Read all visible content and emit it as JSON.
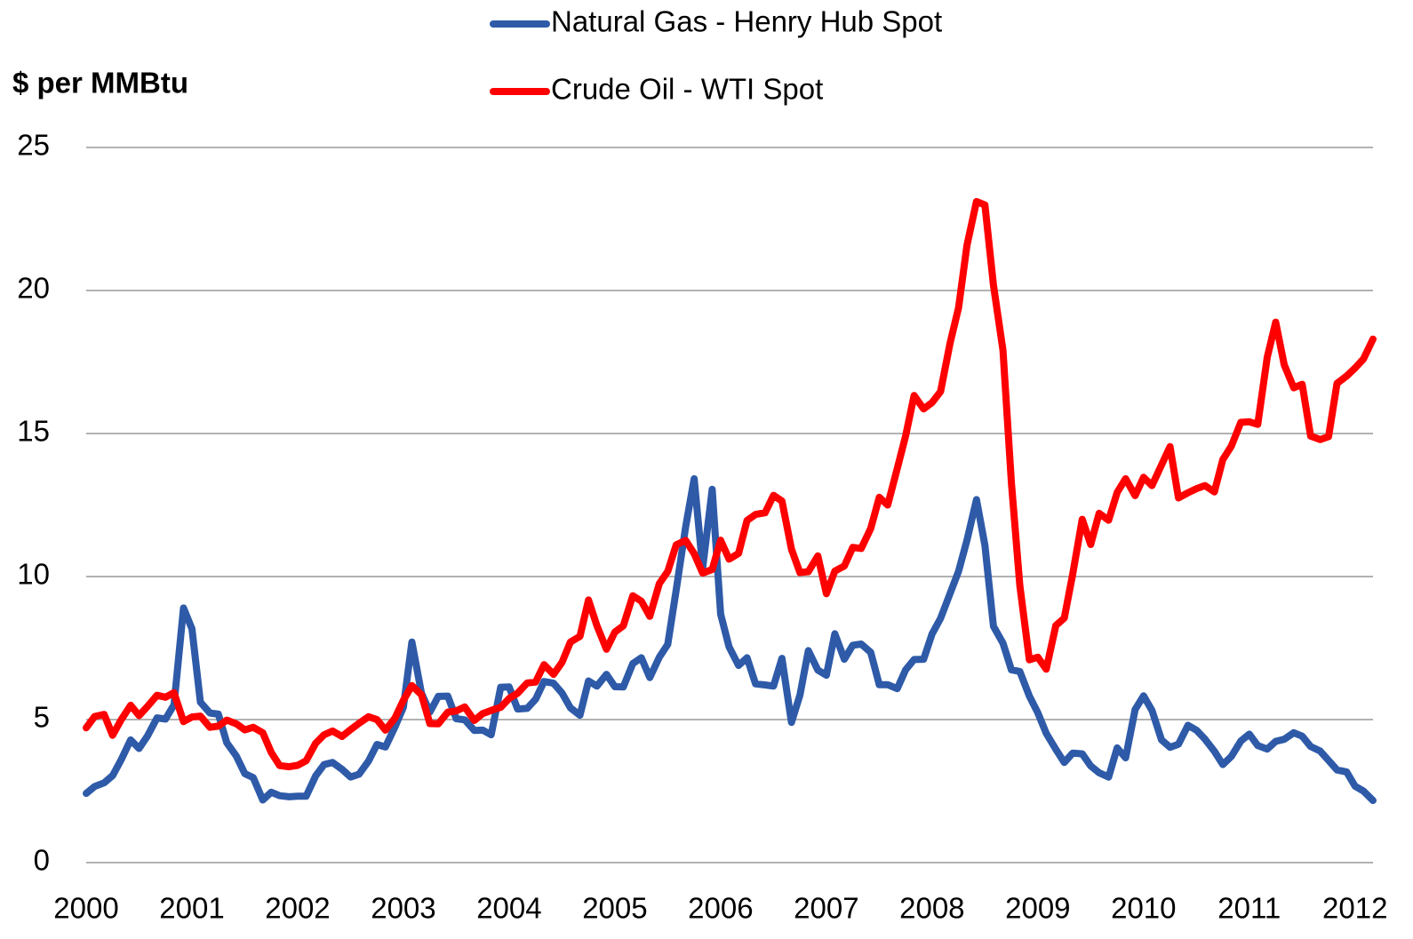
{
  "chart_data": {
    "type": "line",
    "y_label": "$ per MMBtu",
    "x": [
      2000,
      2000.08,
      2000.17,
      2000.25,
      2000.33,
      2000.42,
      2000.5,
      2000.58,
      2000.67,
      2000.75,
      2000.83,
      2000.92,
      2001,
      2001.08,
      2001.17,
      2001.25,
      2001.33,
      2001.42,
      2001.5,
      2001.58,
      2001.67,
      2001.75,
      2001.83,
      2001.92,
      2002,
      2002.08,
      2002.17,
      2002.25,
      2002.33,
      2002.42,
      2002.5,
      2002.58,
      2002.67,
      2002.75,
      2002.83,
      2002.92,
      2003,
      2003.08,
      2003.17,
      2003.25,
      2003.33,
      2003.42,
      2003.5,
      2003.58,
      2003.67,
      2003.75,
      2003.83,
      2003.92,
      2004,
      2004.08,
      2004.17,
      2004.25,
      2004.33,
      2004.42,
      2004.5,
      2004.58,
      2004.67,
      2004.75,
      2004.83,
      2004.92,
      2005,
      2005.08,
      2005.17,
      2005.25,
      2005.33,
      2005.42,
      2005.5,
      2005.58,
      2005.67,
      2005.75,
      2005.83,
      2005.92,
      2006,
      2006.08,
      2006.17,
      2006.25,
      2006.33,
      2006.42,
      2006.5,
      2006.58,
      2006.67,
      2006.75,
      2006.83,
      2006.92,
      2007,
      2007.08,
      2007.17,
      2007.25,
      2007.33,
      2007.42,
      2007.5,
      2007.58,
      2007.67,
      2007.75,
      2007.83,
      2007.92,
      2008,
      2008.08,
      2008.17,
      2008.25,
      2008.33,
      2008.42,
      2008.5,
      2008.58,
      2008.67,
      2008.75,
      2008.83,
      2008.92,
      2009,
      2009.08,
      2009.17,
      2009.25,
      2009.33,
      2009.42,
      2009.5,
      2009.58,
      2009.67,
      2009.75,
      2009.83,
      2009.92,
      2010,
      2010.08,
      2010.17,
      2010.25,
      2010.33,
      2010.42,
      2010.5,
      2010.58,
      2010.67,
      2010.75,
      2010.83,
      2010.92,
      2011,
      2011.08,
      2011.17,
      2011.25,
      2011.33,
      2011.42,
      2011.5,
      2011.58,
      2011.67,
      2011.75,
      2011.83,
      2011.92,
      2012,
      2012.08,
      2012.17
    ],
    "series": [
      {
        "name": "Natural Gas - Henry Hub Spot",
        "color": "#2e5aa8",
        "values": [
          2.42,
          2.66,
          2.79,
          3.04,
          3.59,
          4.29,
          3.99,
          4.43,
          5.06,
          5.02,
          5.52,
          8.9,
          8.17,
          5.61,
          5.23,
          5.19,
          4.19,
          3.72,
          3.11,
          2.97,
          2.19,
          2.46,
          2.34,
          2.3,
          2.32,
          2.32,
          3.03,
          3.43,
          3.5,
          3.26,
          2.99,
          3.09,
          3.55,
          4.13,
          4.04,
          4.74,
          5.43,
          7.71,
          5.93,
          5.26,
          5.81,
          5.82,
          5.03,
          4.99,
          4.62,
          4.63,
          4.47,
          6.13,
          6.14,
          5.37,
          5.39,
          5.71,
          6.33,
          6.27,
          5.93,
          5.41,
          5.15,
          6.35,
          6.17,
          6.58,
          6.15,
          6.14,
          6.96,
          7.16,
          6.47,
          7.18,
          7.63,
          9.53,
          11.75,
          13.42,
          10.3,
          13.05,
          8.69,
          7.54,
          6.89,
          7.16,
          6.25,
          6.21,
          6.17,
          7.14,
          4.9,
          5.85,
          7.41,
          6.73,
          6.55,
          8,
          7.11,
          7.6,
          7.64,
          7.35,
          6.22,
          6.22,
          6.08,
          6.74,
          7.1,
          7.11,
          7.99,
          8.54,
          9.41,
          10.18,
          11.27,
          12.69,
          11.09,
          8.26,
          7.67,
          6.74,
          6.68,
          5.82,
          5.24,
          4.52,
          3.96,
          3.5,
          3.83,
          3.8,
          3.38,
          3.14,
          2.99,
          4.01,
          3.66,
          5.35,
          5.83,
          5.32,
          4.29,
          4.03,
          4.14,
          4.8,
          4.63,
          4.32,
          3.89,
          3.43,
          3.71,
          4.25,
          4.49,
          4.09,
          3.97,
          4.24,
          4.31,
          4.54,
          4.42,
          4.06,
          3.9,
          3.57,
          3.24,
          3.17,
          2.67,
          2.5,
          2.17
        ]
      },
      {
        "name": "Crude Oil - WTI Spot",
        "color": "#ff0000",
        "values": [
          4.71,
          5.11,
          5.18,
          4.45,
          4.99,
          5.5,
          5.14,
          5.46,
          5.85,
          5.78,
          5.94,
          4.93,
          5.09,
          5.12,
          4.73,
          4.77,
          4.98,
          4.85,
          4.64,
          4.73,
          4.54,
          3.85,
          3.39,
          3.35,
          3.4,
          3.56,
          4.17,
          4.47,
          4.6,
          4.41,
          4.65,
          4.87,
          5.1,
          5,
          4.63,
          5.05,
          5.67,
          6.19,
          5.87,
          4.86,
          4.85,
          5.26,
          5.3,
          5.44,
          4.97,
          5.21,
          5.32,
          5.43,
          5.74,
          5.92,
          6.28,
          6.31,
          6.92,
          6.58,
          7,
          7.71,
          7.91,
          9.18,
          8.28,
          7.46,
          8.06,
          8.28,
          9.33,
          9.14,
          8.61,
          9.75,
          10.18,
          11.11,
          11.26,
          10.8,
          10.12,
          10.25,
          11.27,
          10.61,
          10.81,
          11.96,
          12.17,
          12.23,
          12.84,
          12.64,
          10.96,
          10.14,
          10.17,
          10.72,
          9.4,
          10.19,
          10.37,
          11.02,
          10.98,
          11.68,
          12.77,
          12.5,
          13.77,
          14.92,
          16.33,
          15.86,
          16.08,
          16.47,
          18.16,
          19.39,
          21.58,
          23.11,
          22.99,
          20.19,
          17.91,
          13.28,
          9.68,
          7.09,
          7.18,
          6.76,
          8.29,
          8.55,
          10.09,
          12,
          11.12,
          12.21,
          11.97,
          12.94,
          13.42,
          12.83,
          13.47,
          13.18,
          13.9,
          14.54,
          12.75,
          12.93,
          13.07,
          13.18,
          12.96,
          14.09,
          14.56,
          15.39,
          15.41,
          15.32,
          17.67,
          18.89,
          17.4,
          16.6,
          16.72,
          14.91,
          14.79,
          14.89,
          16.75,
          17.01,
          17.29,
          17.61,
          18.3
        ]
      }
    ],
    "xlim": [
      2000,
      2012.17
    ],
    "xticks": [
      2000,
      2001,
      2002,
      2003,
      2004,
      2005,
      2006,
      2007,
      2008,
      2009,
      2010,
      2011,
      2012
    ],
    "ylim": [
      0,
      25
    ],
    "yticks": [
      0,
      5,
      10,
      15,
      20,
      25
    ],
    "grid": true,
    "legend": "top"
  }
}
